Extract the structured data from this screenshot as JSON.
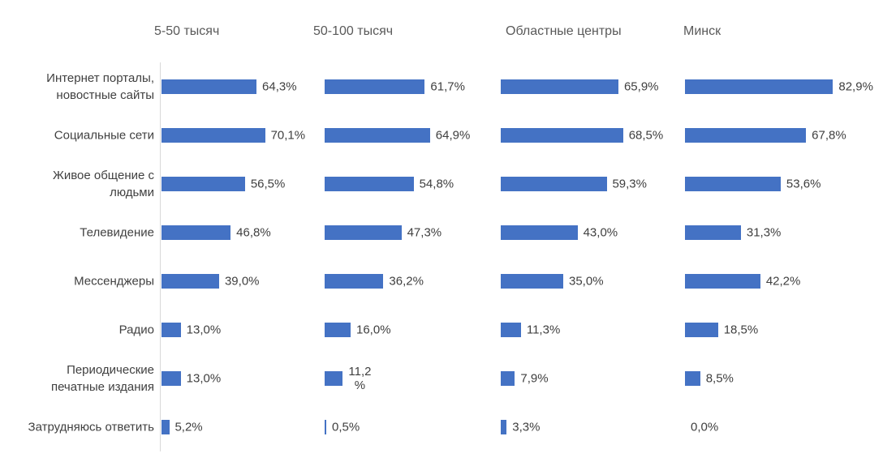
{
  "chart_data": {
    "type": "bar",
    "orientation": "horizontal",
    "title": "",
    "value_suffix": "%",
    "decimal_separator": ",",
    "bar_color": "#4472C4",
    "axis_line_color": "#D9D9D9",
    "label_color": "#404040",
    "header_color": "#595959",
    "grid": false,
    "legend_position": "panel headers above each chart column",
    "categories": [
      "Интернет порталы,\nновостные сайты",
      "Социальные сети",
      "Живое общение с\nлюдьми",
      "Телевидение",
      "Мессенджеры",
      "Радио",
      "Периодические\nпечатные издания",
      "Затрудняюсь ответить"
    ],
    "series": [
      {
        "name": "5-50 тысяч",
        "values": [
          64.3,
          70.1,
          56.5,
          46.8,
          39.0,
          13.0,
          13.0,
          5.2
        ],
        "labels": [
          "64,3%",
          "70,1%",
          "56,5%",
          "46,8%",
          "39,0%",
          "13,0%",
          "13,0%",
          "5,2%"
        ],
        "xlim": [
          0,
          80
        ]
      },
      {
        "name": "50-100 тысяч",
        "values": [
          61.7,
          64.9,
          54.8,
          47.3,
          36.2,
          16.0,
          11.2,
          0.5
        ],
        "labels": [
          "61,7%",
          "64,9%",
          "54,8%",
          "47,3%",
          "36,2%",
          "16,0%",
          "11,2\n%",
          "0,5%"
        ],
        "xlim": [
          0,
          70
        ]
      },
      {
        "name": "Областные центры",
        "values": [
          65.9,
          68.5,
          59.3,
          43.0,
          35.0,
          11.3,
          7.9,
          3.3
        ],
        "labels": [
          "65,9%",
          "68,5%",
          "59,3%",
          "43,0%",
          "35,0%",
          "11,3%",
          "7,9%",
          "3,3%"
        ],
        "xlim": [
          0,
          70
        ]
      },
      {
        "name": "Минск",
        "values": [
          82.9,
          67.8,
          53.6,
          31.3,
          42.2,
          18.5,
          8.5,
          0.0
        ],
        "labels": [
          "82,9%",
          "67,8%",
          "53,6%",
          "31,3%",
          "42,2%",
          "18,5%",
          "8,5%",
          "0,0%"
        ],
        "xlim": [
          0,
          90
        ]
      }
    ]
  }
}
